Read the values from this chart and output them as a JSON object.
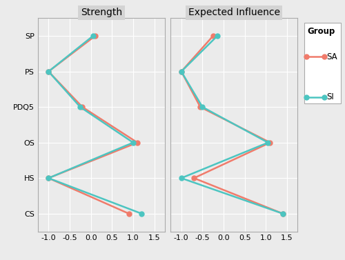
{
  "nodes": [
    "SP",
    "PS",
    "PDQ5",
    "OS",
    "HS",
    "CS"
  ],
  "strength": {
    "SA": [
      0.1,
      -1.0,
      -0.2,
      1.1,
      -1.0,
      0.9
    ],
    "SI": [
      0.05,
      -1.0,
      -0.25,
      1.0,
      -1.0,
      1.2
    ]
  },
  "expected_influence": {
    "SA": [
      -0.25,
      -1.0,
      -0.55,
      1.1,
      -0.7,
      1.4
    ],
    "SI": [
      -0.15,
      -1.0,
      -0.5,
      1.05,
      -1.0,
      1.4
    ]
  },
  "color_SA": "#F07B6B",
  "color_SI": "#4CC5C1",
  "xlim": [
    -1.25,
    1.75
  ],
  "xticks": [
    -1.0,
    -0.5,
    0.0,
    0.5,
    1.0,
    1.5
  ],
  "xtick_labels": [
    "-1.0",
    "-0.5",
    "0.0",
    "0.5",
    "1.0",
    "1.5"
  ],
  "panel1_title": "Strength",
  "panel2_title": "Expected Influence",
  "legend_title": "Group",
  "legend_labels": [
    "SA",
    "SI"
  ],
  "bg_color": "#EBEBEB",
  "header_color": "#D3D3D3",
  "grid_color": "#FFFFFF",
  "line_width": 1.8,
  "marker_size": 5
}
